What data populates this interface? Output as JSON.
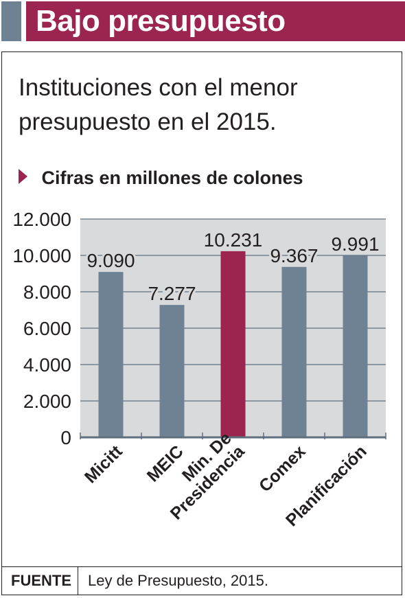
{
  "header": {
    "title": "Bajo presupuesto"
  },
  "subtitle": "Instituciones con el menor presupuesto en el 2015.",
  "unit": "Cifras en millones de colones",
  "chart_data": {
    "type": "bar",
    "categories": [
      "Micitt",
      "MEIC",
      "Min. De Presidencia",
      "Comex",
      "Planificación"
    ],
    "category_lines": [
      [
        "Micitt"
      ],
      [
        "MEIC"
      ],
      [
        "Min. De",
        "Presidencia"
      ],
      [
        "Comex"
      ],
      [
        "Planificación"
      ]
    ],
    "values": [
      9090,
      7277,
      10231,
      9367,
      9991
    ],
    "value_labels": [
      "9.090",
      "7.277",
      "10.231",
      "9.367",
      "9.991"
    ],
    "highlight_index": 2,
    "ylim": [
      0,
      12000
    ],
    "yticks": [
      0,
      2000,
      4000,
      6000,
      8000,
      10000,
      12000
    ],
    "ytick_labels": [
      "0",
      "2.000",
      "4.000",
      "6.000",
      "8.000",
      "10.000",
      "12.000"
    ],
    "grid": true,
    "colors": {
      "bar": "#6e8294",
      "highlight": "#9b2550",
      "plot_bg": "#d9dadc",
      "grid": "#5f6f7e"
    }
  },
  "footer": {
    "label": "FUENTE",
    "text": "Ley de Presupuesto, 2015."
  }
}
